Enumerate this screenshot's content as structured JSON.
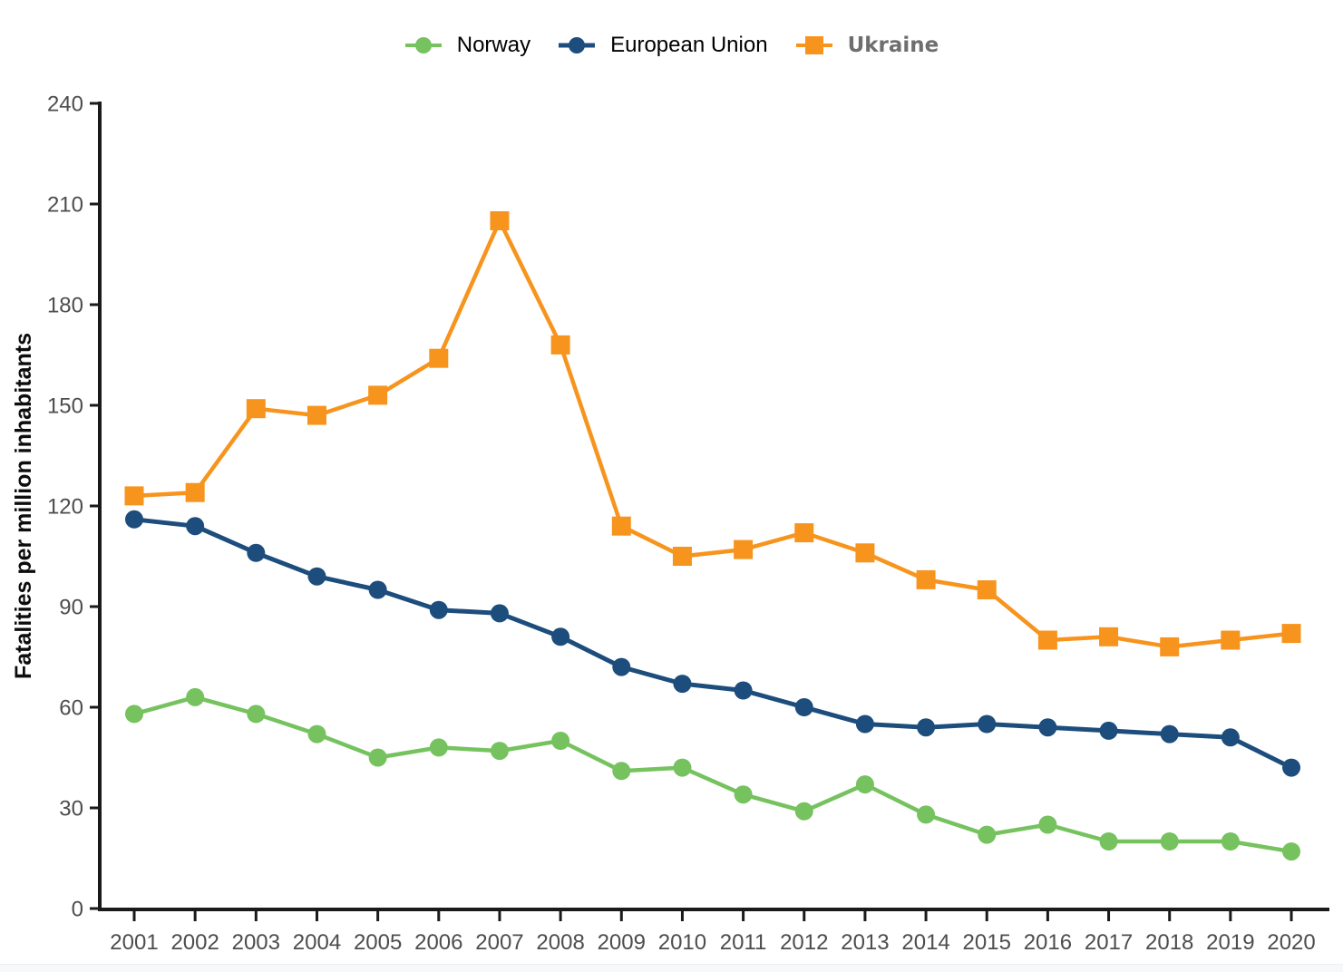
{
  "chart_data": {
    "type": "line",
    "title": "",
    "xlabel": "",
    "ylabel": "Fatalities per million inhabitants",
    "x": [
      2001,
      2002,
      2003,
      2004,
      2005,
      2006,
      2007,
      2008,
      2009,
      2010,
      2011,
      2012,
      2013,
      2014,
      2015,
      2016,
      2017,
      2018,
      2019,
      2020
    ],
    "ylim": [
      0,
      240
    ],
    "yticks": [
      0,
      30,
      60,
      90,
      120,
      150,
      180,
      210,
      240
    ],
    "grid": false,
    "legend_position": "top-center",
    "series": [
      {
        "name": "Norway",
        "color": "#75c25f",
        "marker": "circle",
        "values": [
          58,
          63,
          58,
          52,
          45,
          48,
          47,
          50,
          41,
          42,
          34,
          29,
          37,
          28,
          22,
          25,
          20,
          20,
          20,
          17
        ]
      },
      {
        "name": "European Union",
        "color": "#1c4d7c",
        "marker": "circle",
        "values": [
          116,
          114,
          106,
          99,
          95,
          89,
          88,
          81,
          72,
          67,
          65,
          60,
          55,
          54,
          55,
          54,
          53,
          52,
          51,
          42
        ]
      },
      {
        "name": "Ukraine",
        "color": "#f7941d",
        "marker": "square",
        "values": [
          123,
          124,
          149,
          147,
          153,
          164,
          205,
          168,
          114,
          105,
          107,
          112,
          106,
          98,
          95,
          80,
          81,
          78,
          80,
          82
        ]
      }
    ],
    "colors": {
      "axis": "#1a1a1a",
      "tick_label": "#4d4d4d",
      "ylabel_text": "#0d0d0d",
      "ukraine_legend_text": "#6e6e6e"
    }
  }
}
